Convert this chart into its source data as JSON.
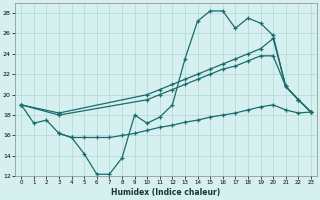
{
  "xlabel": "Humidex (Indice chaleur)",
  "bg_color": "#d6f0f0",
  "grid_color": "#b0d8d8",
  "line_color": "#1a6b6b",
  "xlim": [
    -0.5,
    23.5
  ],
  "ylim": [
    12,
    29
  ],
  "xticks": [
    0,
    1,
    2,
    3,
    4,
    5,
    6,
    7,
    8,
    9,
    10,
    11,
    12,
    13,
    14,
    15,
    16,
    17,
    18,
    19,
    20,
    21,
    22,
    23
  ],
  "yticks": [
    12,
    14,
    16,
    18,
    20,
    22,
    24,
    26,
    28
  ],
  "line1_x": [
    0,
    1,
    2,
    3,
    4,
    5,
    6,
    7,
    8,
    9,
    10,
    11,
    12,
    13,
    14,
    15,
    16,
    17,
    18,
    19,
    20,
    21,
    22,
    23
  ],
  "line1_y": [
    19.0,
    17.2,
    17.5,
    16.2,
    15.8,
    14.2,
    12.2,
    12.2,
    13.8,
    18.0,
    17.2,
    17.8,
    19.0,
    23.5,
    27.2,
    28.2,
    28.2,
    26.5,
    27.5,
    27.0,
    25.8,
    20.8,
    19.5,
    18.3
  ],
  "line2_x": [
    0,
    3,
    10,
    11,
    12,
    13,
    14,
    15,
    16,
    17,
    18,
    19,
    20,
    21,
    22,
    23
  ],
  "line2_y": [
    19.0,
    18.2,
    20.0,
    20.5,
    21.0,
    21.5,
    22.0,
    22.5,
    23.0,
    23.5,
    24.0,
    24.5,
    25.5,
    20.8,
    19.5,
    18.3
  ],
  "line3_x": [
    0,
    3,
    10,
    11,
    12,
    13,
    14,
    15,
    16,
    17,
    18,
    19,
    20,
    21,
    22,
    23
  ],
  "line3_y": [
    19.0,
    18.0,
    19.5,
    20.0,
    20.5,
    21.0,
    21.5,
    22.0,
    22.5,
    22.8,
    23.3,
    23.8,
    23.8,
    20.8,
    19.5,
    18.3
  ],
  "line4_x": [
    3,
    4,
    5,
    6,
    7,
    8,
    9,
    10,
    11,
    12,
    13,
    14,
    15,
    16,
    17,
    18,
    19,
    20,
    21,
    22,
    23
  ],
  "line4_y": [
    16.2,
    15.8,
    15.8,
    15.8,
    15.8,
    16.0,
    16.2,
    16.5,
    16.8,
    17.0,
    17.3,
    17.5,
    17.8,
    18.0,
    18.2,
    18.5,
    18.8,
    19.0,
    18.5,
    18.2,
    18.3
  ]
}
